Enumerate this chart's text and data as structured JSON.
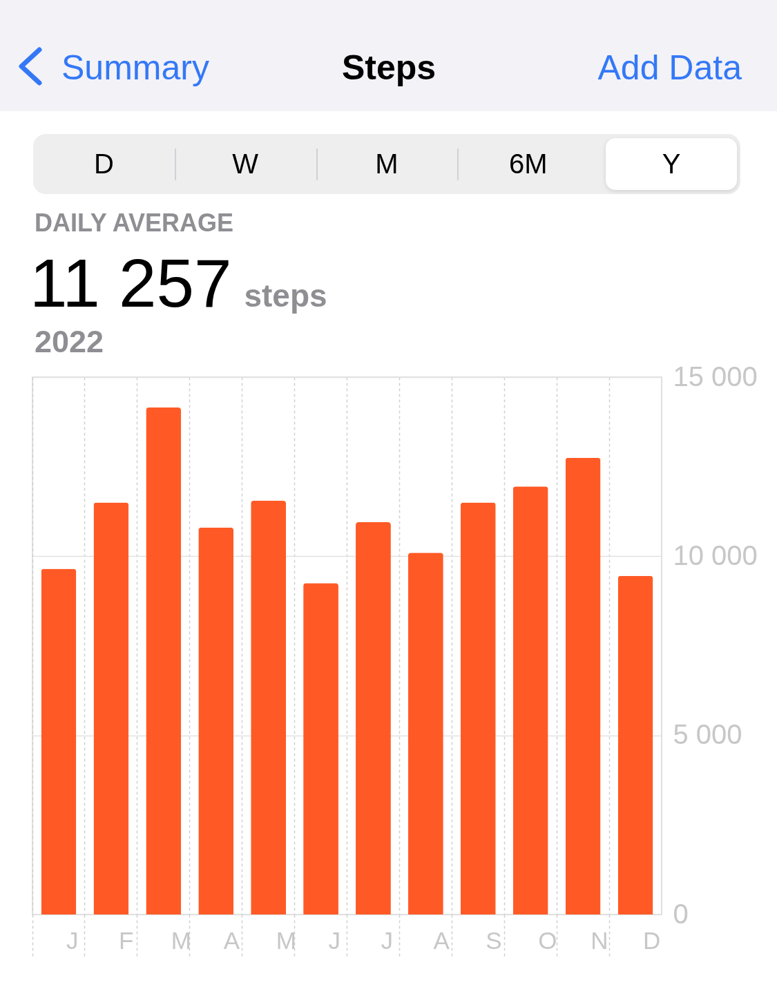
{
  "chart_data": {
    "type": "bar",
    "title": "Steps",
    "subtitle": "DAILY AVERAGE",
    "annotations": [
      "Summary",
      "Add Data",
      "D",
      "W",
      "M",
      "6M",
      "Y",
      "11 257",
      "steps",
      "2022"
    ],
    "categories": [
      "J",
      "F",
      "M",
      "A",
      "M",
      "J",
      "J",
      "A",
      "S",
      "O",
      "N",
      "D"
    ],
    "values": [
      9650,
      11500,
      14150,
      10800,
      11550,
      9250,
      10950,
      10100,
      11500,
      11950,
      12750,
      9450
    ],
    "color": "#ff5a26",
    "ylim": [
      0,
      15000
    ],
    "yticks": [
      0,
      {
        "value": 5000,
        "label": "5 000"
      },
      {
        "value": 10000,
        "label": "10 000"
      },
      {
        "value": 15000,
        "label": "15 000"
      }
    ],
    "grid": true
  }
}
